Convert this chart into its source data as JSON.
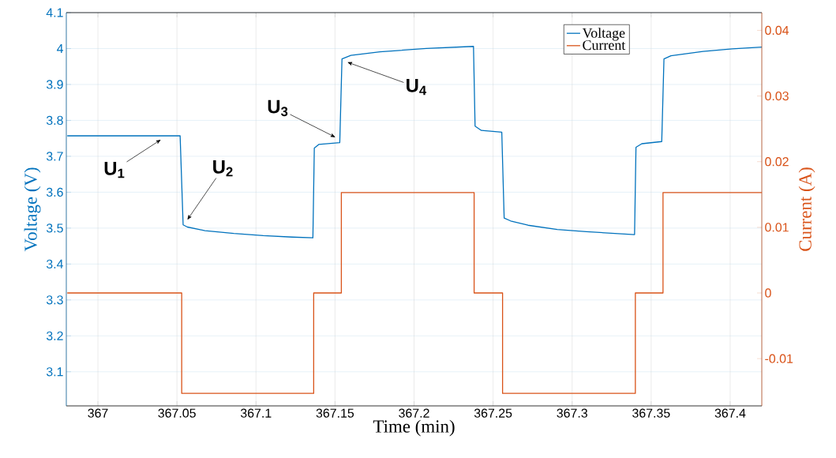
{
  "chart_data": {
    "type": "line",
    "xlabel": "Time (min)",
    "ylabel": "Voltage (V)",
    "y2label": "Current (A)",
    "xlim": [
      366.98,
      367.42
    ],
    "xticks": [
      367,
      367.05,
      367.1,
      367.15,
      367.2,
      367.25,
      367.3,
      367.35,
      367.4
    ],
    "ylim": [
      3.005,
      4.1
    ],
    "yticks": [
      3.1,
      3.2,
      3.3,
      3.4,
      3.5,
      3.6,
      3.7,
      3.8,
      3.9,
      4,
      4.1
    ],
    "y2lim": [
      -0.0172,
      0.0427
    ],
    "y2ticks": [
      -0.01,
      0,
      0.01,
      0.02,
      0.03,
      0.04
    ],
    "grid": true,
    "legend": "top right",
    "series": [
      {
        "name": "Voltage",
        "color": "#0072bd",
        "x": [
          366.9806,
          367.052,
          367.0539,
          367.0566,
          367.0677,
          367.086,
          367.1046,
          367.123,
          367.136,
          367.1369,
          367.1397,
          367.153,
          367.1544,
          367.16,
          367.1784,
          367.2077,
          367.2376,
          367.2386,
          367.2426,
          367.2555,
          367.257,
          367.2611,
          367.2721,
          367.2906,
          367.309,
          367.3395,
          367.3404,
          367.3441,
          367.3567,
          367.3581,
          367.3625,
          367.3828,
          367.4013,
          367.42
        ],
        "values": [
          3.757,
          3.757,
          3.509,
          3.503,
          3.493,
          3.485,
          3.479,
          3.475,
          3.473,
          3.723,
          3.733,
          3.738,
          3.971,
          3.981,
          3.991,
          4.0,
          4.006,
          3.784,
          3.772,
          3.767,
          3.528,
          3.52,
          3.508,
          3.496,
          3.49,
          3.482,
          3.725,
          3.735,
          3.741,
          3.971,
          3.98,
          3.992,
          3.999,
          4.004
        ]
      },
      {
        "name": "Current",
        "color": "#d95319",
        "type": "step",
        "axis": "y2",
        "x": [
          366.9806,
          367.053,
          367.1365,
          367.154,
          367.238,
          367.256,
          367.34,
          367.3575,
          367.42
        ],
        "values": [
          0,
          -0.0153,
          0,
          0.0153,
          0,
          -0.0153,
          0,
          0.0153,
          0.0153
        ]
      }
    ],
    "annotations": [
      "U$_{1}$",
      "U$_{2}$",
      "U$_{3}$",
      "U$_{4}$"
    ]
  }
}
